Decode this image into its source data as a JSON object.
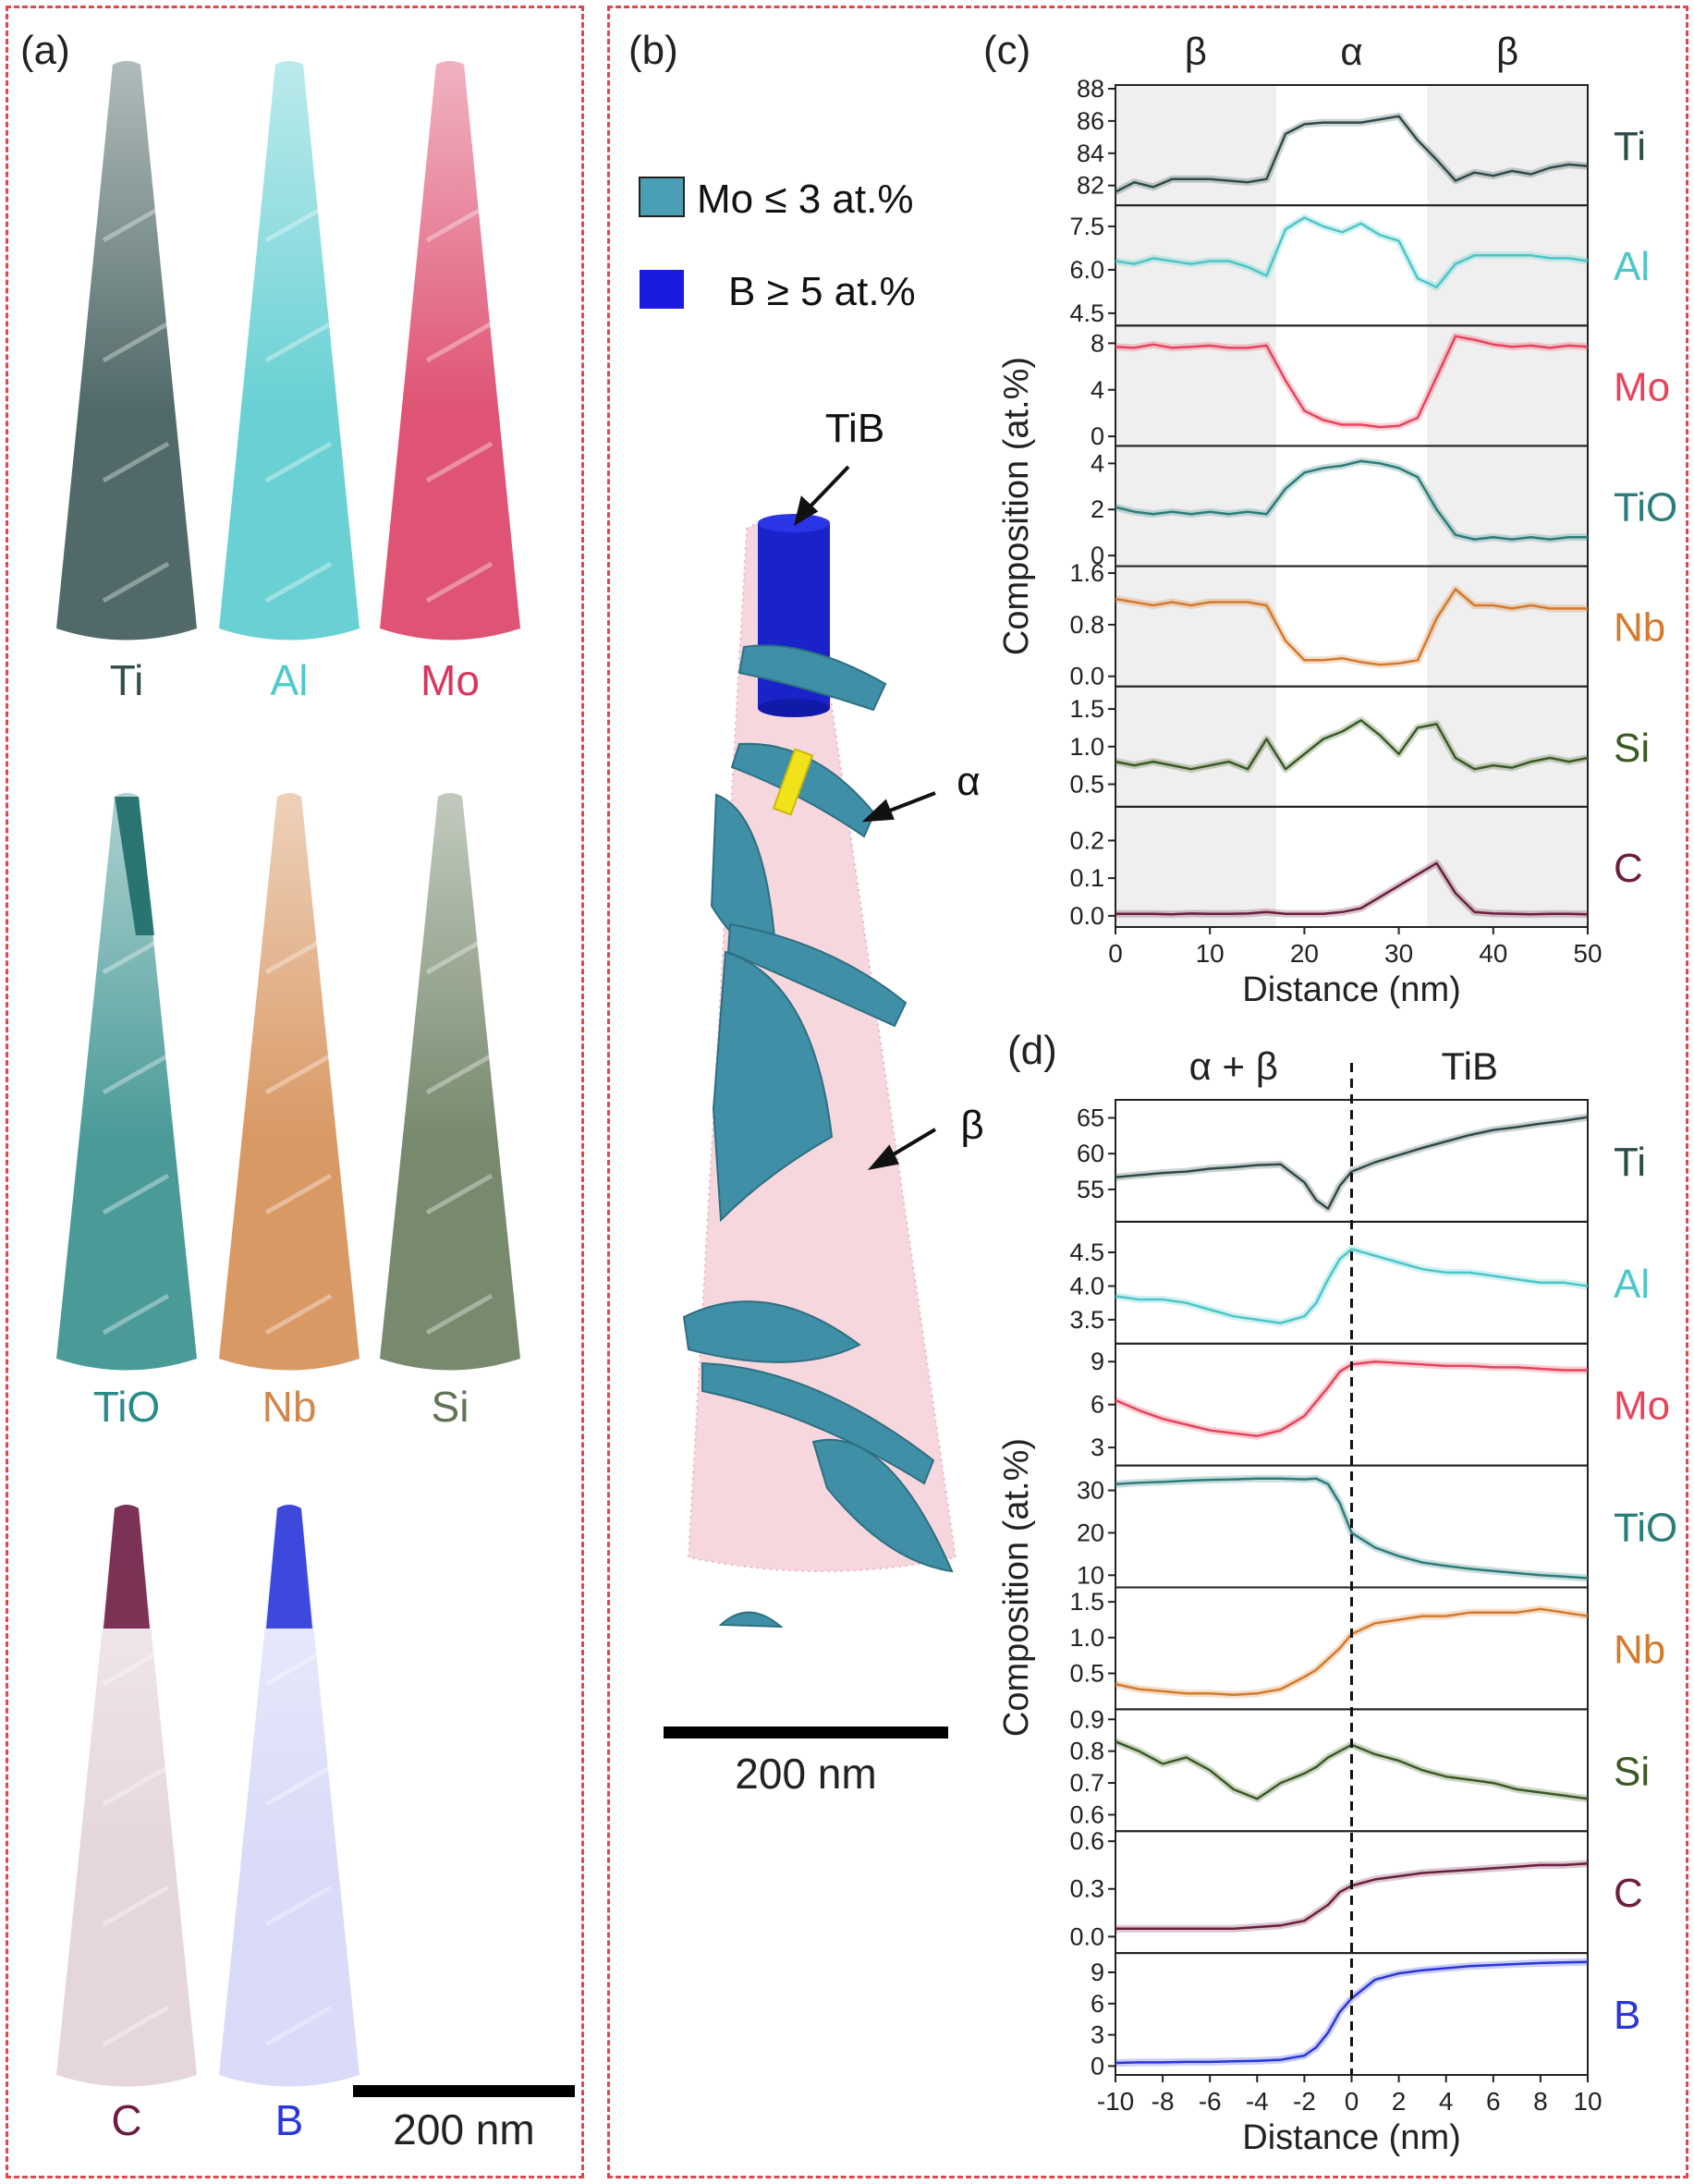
{
  "panel_labels": {
    "a": "(a)",
    "b": "(b)",
    "c": "(c)",
    "d": "(d)"
  },
  "panel_a": {
    "tips": [
      {
        "label": "Ti",
        "color": "#33504f"
      },
      {
        "label": "Al",
        "color": "#4fc9cc"
      },
      {
        "label": "Mo",
        "color": "#d9365c"
      },
      {
        "label": "TiO",
        "color": "#2a8a86"
      },
      {
        "label": "Nb",
        "color": "#d2874a"
      },
      {
        "label": "Si",
        "color": "#5f7555"
      },
      {
        "label": "C",
        "color": "#6e1e45"
      },
      {
        "label": "B",
        "color": "#2a36d8"
      }
    ],
    "scalebar": "200 nm"
  },
  "panel_b": {
    "legend": [
      {
        "label": "Mo ≤ 3 at.%",
        "color": "#4a9fb5"
      },
      {
        "label": "B ≥ 5 at.%",
        "color": "#1b1be0"
      }
    ],
    "annotations": {
      "tib": "TiB",
      "alpha": "α",
      "beta": "β"
    },
    "scalebar": "200 nm"
  },
  "chart_data": [
    {
      "type": "line",
      "panel": "c",
      "xlabel": "Distance (nm)",
      "ylabel": "Composition (at.%)",
      "xlim": [
        0,
        50
      ],
      "xticks": [
        0,
        10,
        20,
        30,
        40,
        50
      ],
      "phases": [
        {
          "label": "β",
          "from": 0,
          "to": 17
        },
        {
          "label": "α",
          "from": 17,
          "to": 33
        },
        {
          "label": "β",
          "from": 33,
          "to": 50
        }
      ],
      "x": [
        0,
        2,
        4,
        6,
        8,
        10,
        12,
        14,
        16,
        18,
        20,
        22,
        24,
        26,
        28,
        30,
        32,
        34,
        36,
        38,
        40,
        42,
        44,
        46,
        48,
        50
      ],
      "series": [
        {
          "name": "Ti",
          "color": "#2e4a49",
          "ylim": [
            81,
            88
          ],
          "yticks": [
            82,
            84,
            86,
            88
          ],
          "values": [
            81.6,
            82.2,
            81.9,
            82.4,
            82.4,
            82.4,
            82.3,
            82.2,
            82.4,
            85.2,
            85.8,
            85.9,
            85.9,
            85.9,
            86.1,
            86.3,
            84.8,
            83.6,
            82.3,
            82.8,
            82.6,
            82.9,
            82.7,
            83.1,
            83.3,
            83.2
          ]
        },
        {
          "name": "Al",
          "color": "#4cc6c9",
          "ylim": [
            4.2,
            8.1
          ],
          "yticks": [
            4.5,
            6.0,
            7.5
          ],
          "values": [
            6.3,
            6.2,
            6.4,
            6.3,
            6.2,
            6.3,
            6.3,
            6.1,
            5.8,
            7.4,
            7.8,
            7.5,
            7.3,
            7.6,
            7.2,
            7.0,
            5.7,
            5.4,
            6.2,
            6.5,
            6.5,
            6.5,
            6.5,
            6.4,
            6.4,
            6.3
          ]
        },
        {
          "name": "Mo",
          "color": "#e8435d",
          "ylim": [
            -0.5,
            9.2
          ],
          "yticks": [
            0,
            4,
            8
          ],
          "values": [
            7.7,
            7.6,
            7.9,
            7.6,
            7.7,
            7.8,
            7.6,
            7.6,
            7.8,
            4.8,
            2.2,
            1.4,
            1.0,
            1.0,
            0.8,
            0.9,
            1.6,
            5.1,
            8.6,
            8.3,
            7.9,
            7.7,
            7.8,
            7.6,
            7.8,
            7.7
          ]
        },
        {
          "name": "TiO",
          "color": "#2b7d7a",
          "ylim": [
            -0.3,
            4.6
          ],
          "yticks": [
            0,
            2,
            4
          ],
          "values": [
            2.1,
            1.9,
            1.8,
            1.9,
            1.8,
            1.9,
            1.8,
            1.9,
            1.8,
            2.9,
            3.6,
            3.8,
            3.9,
            4.1,
            4.0,
            3.8,
            3.4,
            2.0,
            0.9,
            0.7,
            0.8,
            0.7,
            0.8,
            0.7,
            0.8,
            0.8
          ]
        },
        {
          "name": "Nb",
          "color": "#d47a2c",
          "ylim": [
            -0.1,
            1.65
          ],
          "yticks": [
            0.0,
            0.8,
            1.6
          ],
          "values": [
            1.2,
            1.15,
            1.1,
            1.15,
            1.1,
            1.15,
            1.15,
            1.15,
            1.1,
            0.55,
            0.25,
            0.25,
            0.28,
            0.22,
            0.18,
            0.2,
            0.25,
            0.9,
            1.35,
            1.1,
            1.1,
            1.05,
            1.1,
            1.05,
            1.05,
            1.05
          ]
        },
        {
          "name": "Si",
          "color": "#3a5a22",
          "ylim": [
            0.25,
            1.75
          ],
          "yticks": [
            0.5,
            1.0,
            1.5
          ],
          "values": [
            0.8,
            0.75,
            0.8,
            0.75,
            0.7,
            0.75,
            0.8,
            0.7,
            1.1,
            0.7,
            0.9,
            1.1,
            1.2,
            1.35,
            1.15,
            0.9,
            1.25,
            1.3,
            0.85,
            0.7,
            0.75,
            0.72,
            0.8,
            0.85,
            0.8,
            0.85
          ]
        },
        {
          "name": "C",
          "color": "#6b1e3f",
          "ylim": [
            -0.02,
            0.28
          ],
          "yticks": [
            0.0,
            0.1,
            0.2
          ],
          "values": [
            0.005,
            0.005,
            0.005,
            0.004,
            0.006,
            0.005,
            0.005,
            0.006,
            0.01,
            0.005,
            0.005,
            0.005,
            0.01,
            0.02,
            0.05,
            0.08,
            0.11,
            0.14,
            0.06,
            0.01,
            0.006,
            0.005,
            0.004,
            0.005,
            0.005,
            0.004
          ]
        }
      ]
    },
    {
      "type": "line",
      "panel": "d",
      "xlabel": "Distance (nm)",
      "ylabel": "Composition (at.%)",
      "xlim": [
        -10,
        10
      ],
      "xticks": [
        -10,
        -8,
        -6,
        -4,
        -2,
        0,
        2,
        4,
        6,
        8,
        10
      ],
      "phases": [
        {
          "label": "α + β",
          "from": -10,
          "to": 0
        },
        {
          "label": "TiB",
          "from": 0,
          "to": 10
        }
      ],
      "x": [
        -10,
        -9,
        -8,
        -7,
        -6,
        -5,
        -4,
        -3,
        -2,
        -1.5,
        -1,
        -0.5,
        0,
        1,
        2,
        3,
        4,
        5,
        6,
        7,
        8,
        9,
        10
      ],
      "series": [
        {
          "name": "Ti",
          "color": "#2e4a49",
          "ylim": [
            51,
            67
          ],
          "yticks": [
            55,
            60,
            65
          ],
          "values": [
            56.7,
            57.0,
            57.3,
            57.5,
            57.9,
            58.1,
            58.4,
            58.5,
            56.0,
            53.5,
            52.3,
            55.5,
            57.5,
            58.8,
            59.8,
            60.8,
            61.7,
            62.6,
            63.3,
            63.7,
            64.2,
            64.6,
            65.1
          ]
        },
        {
          "name": "Al",
          "color": "#4cc6c9",
          "ylim": [
            3.2,
            4.9
          ],
          "yticks": [
            3.5,
            4.0,
            4.5
          ],
          "values": [
            3.85,
            3.8,
            3.8,
            3.75,
            3.65,
            3.55,
            3.5,
            3.45,
            3.55,
            3.75,
            4.1,
            4.4,
            4.55,
            4.45,
            4.35,
            4.25,
            4.2,
            4.2,
            4.15,
            4.1,
            4.05,
            4.05,
            4.0
          ]
        },
        {
          "name": "Mo",
          "color": "#e8435d",
          "ylim": [
            2.0,
            10.0
          ],
          "yticks": [
            3,
            6,
            9
          ],
          "values": [
            6.3,
            5.6,
            5.0,
            4.6,
            4.2,
            4.0,
            3.8,
            4.2,
            5.2,
            6.2,
            7.2,
            8.3,
            8.8,
            9.0,
            8.9,
            8.8,
            8.7,
            8.7,
            8.6,
            8.6,
            8.5,
            8.4,
            8.4
          ]
        },
        {
          "name": "TiO",
          "color": "#2b7d7a",
          "ylim": [
            8,
            35
          ],
          "yticks": [
            10,
            20,
            30
          ],
          "values": [
            31.5,
            31.8,
            32.0,
            32.3,
            32.5,
            32.6,
            32.8,
            32.8,
            32.6,
            32.8,
            31.5,
            27.0,
            20.0,
            16.5,
            14.5,
            13.0,
            12.2,
            11.5,
            11.0,
            10.5,
            10.0,
            9.7,
            9.3
          ]
        },
        {
          "name": "Nb",
          "color": "#d47a2c",
          "ylim": [
            0.05,
            1.65
          ],
          "yticks": [
            0.5,
            1.0,
            1.5
          ],
          "values": [
            0.35,
            0.28,
            0.25,
            0.22,
            0.22,
            0.2,
            0.22,
            0.28,
            0.45,
            0.55,
            0.7,
            0.85,
            1.05,
            1.2,
            1.25,
            1.3,
            1.3,
            1.35,
            1.35,
            1.35,
            1.4,
            1.35,
            1.3
          ]
        },
        {
          "name": "Si",
          "color": "#3a5a22",
          "ylim": [
            0.56,
            0.92
          ],
          "yticks": [
            0.6,
            0.7,
            0.8,
            0.9
          ],
          "values": [
            0.83,
            0.8,
            0.76,
            0.78,
            0.74,
            0.68,
            0.65,
            0.7,
            0.73,
            0.75,
            0.78,
            0.8,
            0.82,
            0.79,
            0.77,
            0.74,
            0.72,
            0.71,
            0.7,
            0.68,
            0.67,
            0.66,
            0.65
          ]
        },
        {
          "name": "C",
          "color": "#6b1e3f",
          "ylim": [
            -0.08,
            0.64
          ],
          "yticks": [
            0.0,
            0.3,
            0.6
          ],
          "values": [
            0.05,
            0.05,
            0.05,
            0.05,
            0.05,
            0.05,
            0.06,
            0.07,
            0.1,
            0.15,
            0.2,
            0.28,
            0.32,
            0.36,
            0.38,
            0.4,
            0.41,
            0.42,
            0.43,
            0.44,
            0.45,
            0.45,
            0.46
          ]
        },
        {
          "name": "B",
          "color": "#2a36d8",
          "ylim": [
            -0.5,
            10.5
          ],
          "yticks": [
            0,
            3,
            6,
            9
          ],
          "values": [
            0.3,
            0.35,
            0.35,
            0.4,
            0.4,
            0.45,
            0.5,
            0.6,
            1.0,
            1.8,
            3.2,
            5.2,
            6.5,
            8.3,
            8.9,
            9.2,
            9.4,
            9.6,
            9.7,
            9.8,
            9.9,
            9.95,
            10.0
          ]
        }
      ]
    }
  ]
}
